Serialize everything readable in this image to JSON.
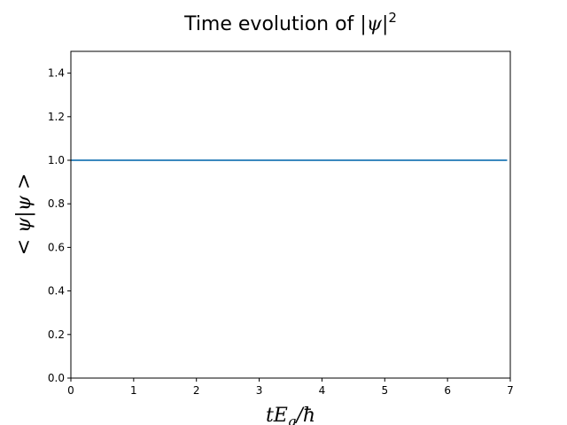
{
  "chart_data": {
    "type": "line",
    "title_prefix": "Time evolution of ",
    "title_math": "|ψ|",
    "title_sup": "2",
    "xlabel_main": "tE",
    "xlabel_sub": "g",
    "xlabel_tail": "/ħ",
    "ylabel": "< ψ|ψ >",
    "xlim": [
      0,
      7
    ],
    "ylim": [
      0.0,
      1.5
    ],
    "xticks": [
      0,
      1,
      2,
      3,
      4,
      5,
      6,
      7
    ],
    "yticks": [
      0.0,
      0.2,
      0.4,
      0.6,
      0.8,
      1.0,
      1.2,
      1.4
    ],
    "xtick_labels": [
      "0",
      "1",
      "2",
      "3",
      "4",
      "5",
      "6",
      "7"
    ],
    "ytick_labels": [
      "0.0",
      "0.2",
      "0.4",
      "0.6",
      "0.8",
      "1.0",
      "1.2",
      "1.4"
    ],
    "grid": false,
    "line_color": "#1f77b4",
    "series": [
      {
        "x": [
          0,
          6.95
        ],
        "y": [
          1.0,
          1.0
        ]
      }
    ]
  }
}
